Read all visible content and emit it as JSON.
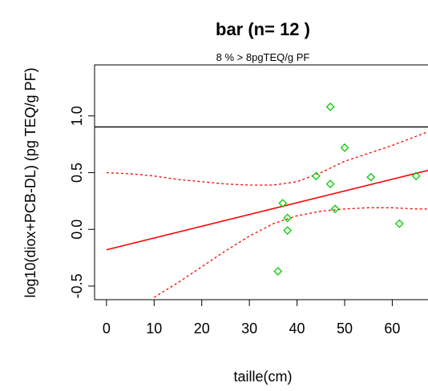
{
  "chart_data": {
    "type": "scatter",
    "title": "bar (n= 12 )",
    "subtitle": "8 % > 8pgTEQ/g PF",
    "xlabel": "taille(cm)",
    "ylabel": "log10(diox+PCB-DL) (pg TEQ/g PF)",
    "xlim": [
      -2.5,
      67.5
    ],
    "ylim": [
      -0.62,
      1.45
    ],
    "x_ticks": [
      0,
      10,
      20,
      30,
      40,
      50,
      60
    ],
    "y_ticks": [
      -0.5,
      0.0,
      0.5,
      1.0
    ],
    "y_tick_labels": [
      "-0.5",
      "0.0",
      "0.5",
      "1.0"
    ],
    "points": [
      {
        "x": 36,
        "y": -0.37
      },
      {
        "x": 37,
        "y": 0.23
      },
      {
        "x": 38,
        "y": 0.1
      },
      {
        "x": 38,
        "y": -0.01
      },
      {
        "x": 44,
        "y": 0.47
      },
      {
        "x": 47,
        "y": 1.08
      },
      {
        "x": 47,
        "y": 0.4
      },
      {
        "x": 48,
        "y": 0.18
      },
      {
        "x": 50,
        "y": 0.72
      },
      {
        "x": 55.5,
        "y": 0.46
      },
      {
        "x": 61.5,
        "y": 0.05
      },
      {
        "x": 65,
        "y": 0.47
      }
    ],
    "threshold_line": {
      "y": 0.903
    },
    "regression_line": {
      "x": [
        0,
        67.5
      ],
      "y": [
        -0.18,
        0.52
      ]
    },
    "confidence_upper": {
      "x": [
        0,
        5,
        10,
        15,
        20,
        25,
        30,
        35,
        40,
        45,
        50,
        55,
        60,
        65,
        67.5
      ],
      "y": [
        0.5,
        0.49,
        0.47,
        0.44,
        0.42,
        0.4,
        0.39,
        0.39,
        0.42,
        0.5,
        0.6,
        0.67,
        0.74,
        0.82,
        0.86
      ]
    },
    "confidence_lower": {
      "x": [
        10,
        15,
        20,
        25,
        30,
        35,
        40,
        45,
        50,
        55,
        60,
        65,
        67.5
      ],
      "y": [
        -0.6,
        -0.47,
        -0.33,
        -0.19,
        -0.06,
        0.05,
        0.12,
        0.16,
        0.18,
        0.19,
        0.19,
        0.18,
        0.18
      ]
    },
    "colors": {
      "points": "#00cc00",
      "regression": "#ff0000",
      "threshold": "#000000",
      "frame": "#000000"
    },
    "grid": false,
    "legend": "none"
  }
}
